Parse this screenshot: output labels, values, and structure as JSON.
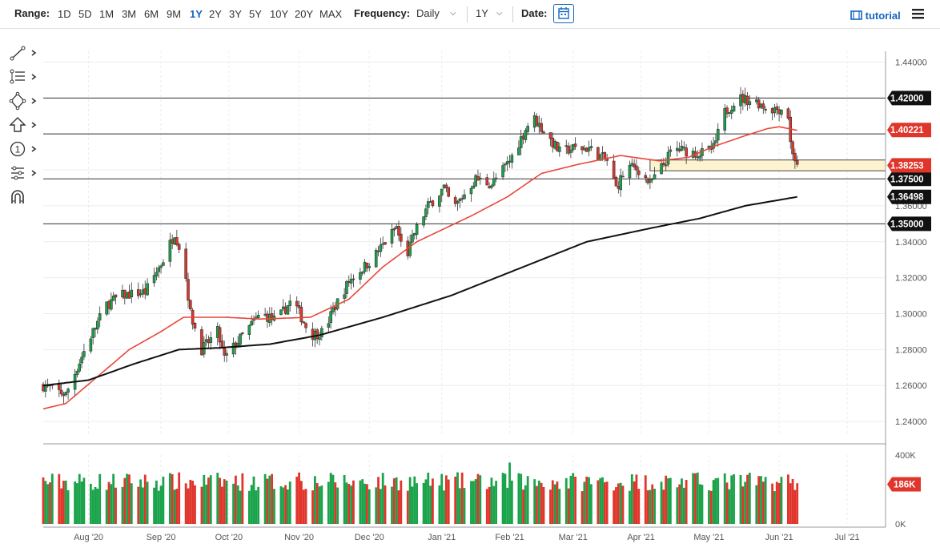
{
  "toolbar": {
    "range_label": "Range:",
    "ranges": [
      "1D",
      "5D",
      "1M",
      "3M",
      "6M",
      "9M",
      "1Y",
      "2Y",
      "3Y",
      "5Y",
      "10Y",
      "20Y",
      "MAX"
    ],
    "active_range": "1Y",
    "frequency_label": "Frequency:",
    "frequency_value": "Daily",
    "period_value": "1Y",
    "date_label": "Date:",
    "tutorial_label": "tutorial"
  },
  "tools": [
    "line-tool-icon",
    "fib-tool-icon",
    "shapes-tool-icon",
    "arrow-tool-icon",
    "counter-tool-icon",
    "indicator-tool-icon",
    "magnet-tool-icon"
  ],
  "colors": {
    "up": "#1aa34a",
    "down": "#e0352b",
    "ma50": "#e8473a",
    "ma200": "#111111",
    "accent": "#1565c0",
    "zone": "#fdf3d0"
  },
  "chart_data": {
    "type": "candlestick",
    "y_ticks": [
      "1.44000",
      "1.42000",
      "1.40000",
      "1.38000",
      "1.36000",
      "1.34000",
      "1.32000",
      "1.30000",
      "1.28000",
      "1.26000",
      "1.24000"
    ],
    "ylim": [
      1.232,
      1.446
    ],
    "x_labels": [
      "Aug '20",
      "Sep '20",
      "Oct '20",
      "Nov '20",
      "Dec '20",
      "Jan '21",
      "Feb '21",
      "Mar '21",
      "Apr '21",
      "May '21",
      "Jun '21",
      "Jul '21"
    ],
    "x_label_days": [
      20,
      52,
      82,
      113,
      144,
      176,
      206,
      234,
      264,
      294,
      325,
      355
    ],
    "x_days_range": [
      0,
      372
    ],
    "last_day": 333,
    "horizontal_levels": [
      {
        "value": 1.42,
        "label": "1.42000"
      },
      {
        "value": 1.4,
        "label": ""
      },
      {
        "value": 1.375,
        "label": "1.37500"
      },
      {
        "value": 1.35,
        "label": "1.35000"
      }
    ],
    "zone": {
      "from": 1.3795,
      "to": 1.3855
    },
    "price_badges": [
      {
        "value": 1.40221,
        "label": "1.40221",
        "color": "#e0352b"
      },
      {
        "value": 1.38253,
        "label": "1.38253",
        "color": "#e0352b"
      },
      {
        "value": 1.36498,
        "label": "1.36498",
        "color": "#111111"
      }
    ],
    "close_anchors": [
      [
        0,
        1.26
      ],
      [
        10,
        1.255
      ],
      [
        20,
        1.285
      ],
      [
        28,
        1.305
      ],
      [
        34,
        1.31
      ],
      [
        45,
        1.312
      ],
      [
        53,
        1.33
      ],
      [
        58,
        1.345
      ],
      [
        62,
        1.33
      ],
      [
        65,
        1.3
      ],
      [
        70,
        1.28
      ],
      [
        77,
        1.29
      ],
      [
        80,
        1.275
      ],
      [
        85,
        1.283
      ],
      [
        96,
        1.3
      ],
      [
        103,
        1.296
      ],
      [
        110,
        1.308
      ],
      [
        118,
        1.288
      ],
      [
        124,
        1.29
      ],
      [
        128,
        1.302
      ],
      [
        135,
        1.318
      ],
      [
        145,
        1.33
      ],
      [
        156,
        1.348
      ],
      [
        160,
        1.33
      ],
      [
        164,
        1.345
      ],
      [
        170,
        1.36
      ],
      [
        177,
        1.37
      ],
      [
        181,
        1.358
      ],
      [
        191,
        1.375
      ],
      [
        198,
        1.372
      ],
      [
        206,
        1.385
      ],
      [
        216,
        1.41
      ],
      [
        222,
        1.4
      ],
      [
        228,
        1.39
      ],
      [
        234,
        1.392
      ],
      [
        241,
        1.392
      ],
      [
        249,
        1.385
      ],
      [
        253,
        1.37
      ],
      [
        258,
        1.382
      ],
      [
        263,
        1.38
      ],
      [
        268,
        1.372
      ],
      [
        275,
        1.385
      ],
      [
        278,
        1.392
      ],
      [
        290,
        1.389
      ],
      [
        296,
        1.392
      ],
      [
        301,
        1.412
      ],
      [
        307,
        1.42
      ],
      [
        315,
        1.418
      ],
      [
        320,
        1.414
      ],
      [
        326,
        1.414
      ],
      [
        329,
        1.41
      ],
      [
        330,
        1.395
      ],
      [
        333,
        1.381
      ]
    ],
    "ma50_anchors": [
      [
        0,
        1.247
      ],
      [
        10,
        1.25
      ],
      [
        24,
        1.265
      ],
      [
        38,
        1.28
      ],
      [
        52,
        1.29
      ],
      [
        62,
        1.298
      ],
      [
        80,
        1.298
      ],
      [
        96,
        1.297
      ],
      [
        118,
        1.298
      ],
      [
        135,
        1.308
      ],
      [
        150,
        1.326
      ],
      [
        165,
        1.34
      ],
      [
        190,
        1.355
      ],
      [
        205,
        1.365
      ],
      [
        220,
        1.378
      ],
      [
        236,
        1.383
      ],
      [
        255,
        1.388
      ],
      [
        272,
        1.385
      ],
      [
        285,
        1.387
      ],
      [
        296,
        1.393
      ],
      [
        310,
        1.399
      ],
      [
        320,
        1.403
      ],
      [
        325,
        1.404
      ],
      [
        333,
        1.402
      ]
    ],
    "ma200_anchors": [
      [
        0,
        1.26
      ],
      [
        20,
        1.263
      ],
      [
        40,
        1.272
      ],
      [
        60,
        1.28
      ],
      [
        78,
        1.281
      ],
      [
        100,
        1.283
      ],
      [
        122,
        1.288
      ],
      [
        150,
        1.298
      ],
      [
        180,
        1.31
      ],
      [
        210,
        1.325
      ],
      [
        240,
        1.34
      ],
      [
        270,
        1.348
      ],
      [
        290,
        1.353
      ],
      [
        310,
        1.36
      ],
      [
        333,
        1.365
      ]
    ],
    "volume": {
      "ticks": [
        "400K",
        "0K"
      ],
      "max": 400000,
      "last_label": "186K"
    }
  }
}
